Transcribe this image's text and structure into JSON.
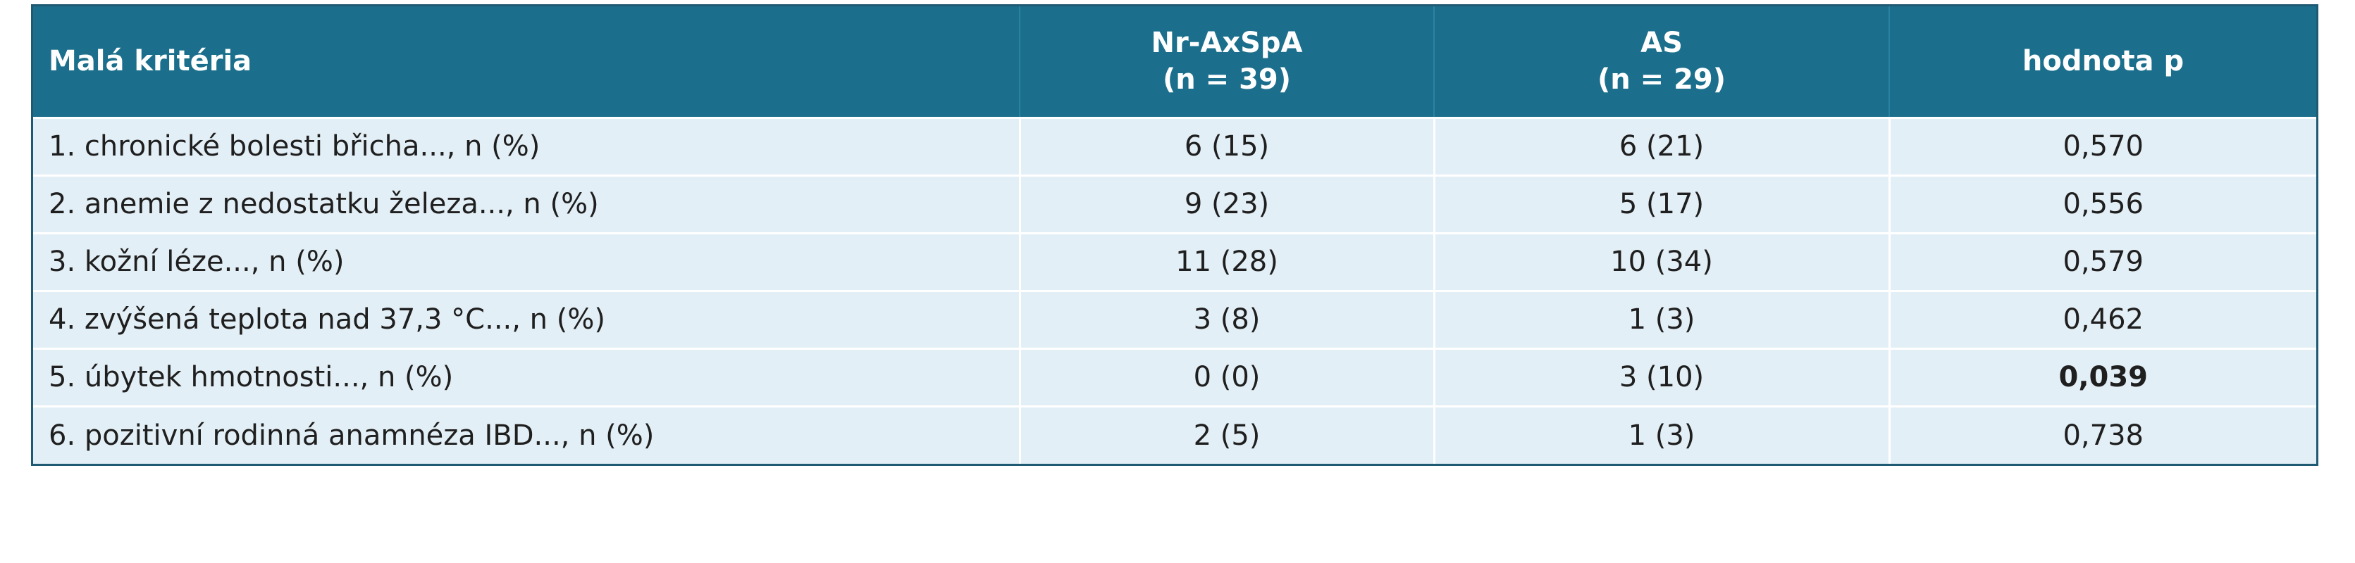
{
  "table": {
    "header": {
      "col1": "Malá kritéria",
      "col2_line1": "Nr-AxSpA",
      "col2_line2": "(n = 39)",
      "col3_line1": "AS",
      "col3_line2": "(n = 29)",
      "col4": "hodnota p"
    },
    "rows": [
      {
        "criterion": "1. chronické bolesti břicha..., n (%)",
        "nraxspa": "6 (15)",
        "as": "6 (21)",
        "p": "0,570",
        "p_bold": false
      },
      {
        "criterion": "2. anemie z nedostatku železa..., n (%)",
        "nraxspa": "9 (23)",
        "as": "5 (17)",
        "p": "0,556",
        "p_bold": false
      },
      {
        "criterion": "3. kožní léze..., n (%)",
        "nraxspa": "11 (28)",
        "as": "10 (34)",
        "p": "0,579",
        "p_bold": false
      },
      {
        "criterion": "4. zvýšená teplota nad 37,3 °C..., n (%)",
        "nraxspa": "3 (8)",
        "as": "1 (3)",
        "p": "0,462",
        "p_bold": false
      },
      {
        "criterion": "5. úbytek hmotnosti..., n (%)",
        "nraxspa": "0 (0)",
        "as": "3 (10)",
        "p": "0,039",
        "p_bold": true
      },
      {
        "criterion": "6. pozitivní rodinná anamnéza IBD..., n (%)",
        "nraxspa": "2 (5)",
        "as": "1 (3)",
        "p": "0,738",
        "p_bold": false
      }
    ]
  },
  "colors": {
    "header_bg": "#1c6f8c",
    "row_bg": "#e3eff6",
    "border": "#1e5a72"
  }
}
